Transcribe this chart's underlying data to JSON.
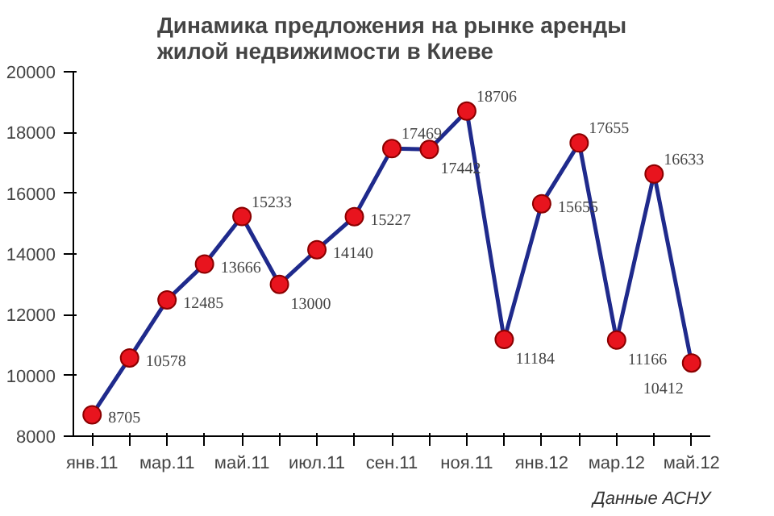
{
  "chart_data": {
    "type": "line",
    "title": "Динамика предложения на рынке аренды жилой недвижимости в Киеве",
    "categories": [
      "янв.11",
      null,
      "мар.11",
      null,
      "май.11",
      null,
      "июл.11",
      null,
      "сен.11",
      null,
      "ноя.11",
      null,
      "янв.12",
      null,
      "мар.12",
      null,
      "май.12"
    ],
    "series": [
      {
        "color": "#1f2a8c",
        "colors": [
          "#e8141e",
          "#e8141e",
          "#e8141e",
          "#e8141e",
          "#e8141e",
          "#e8141e",
          "#e8141e",
          "#e8141e",
          "#e8141e",
          "#e8141e",
          "#e8141e",
          "#e8141e",
          "#e8141e",
          "#e8141e",
          "#e8141e",
          "#e8141e",
          "#e8141e"
        ],
        "values": [
          8705,
          10578,
          12485,
          13666,
          15233,
          13000,
          14140,
          15227,
          17469,
          17442,
          18706,
          11184,
          15655,
          17655,
          11166,
          16633,
          10412
        ]
      }
    ],
    "ylim": [
      8000,
      20000
    ],
    "yticks": [
      8000,
      10000,
      12000,
      14000,
      16000,
      18000,
      20000
    ],
    "marker": "circle",
    "data_labels": true,
    "grid": false,
    "annotations": [
      "Данные АСНУ"
    ]
  }
}
